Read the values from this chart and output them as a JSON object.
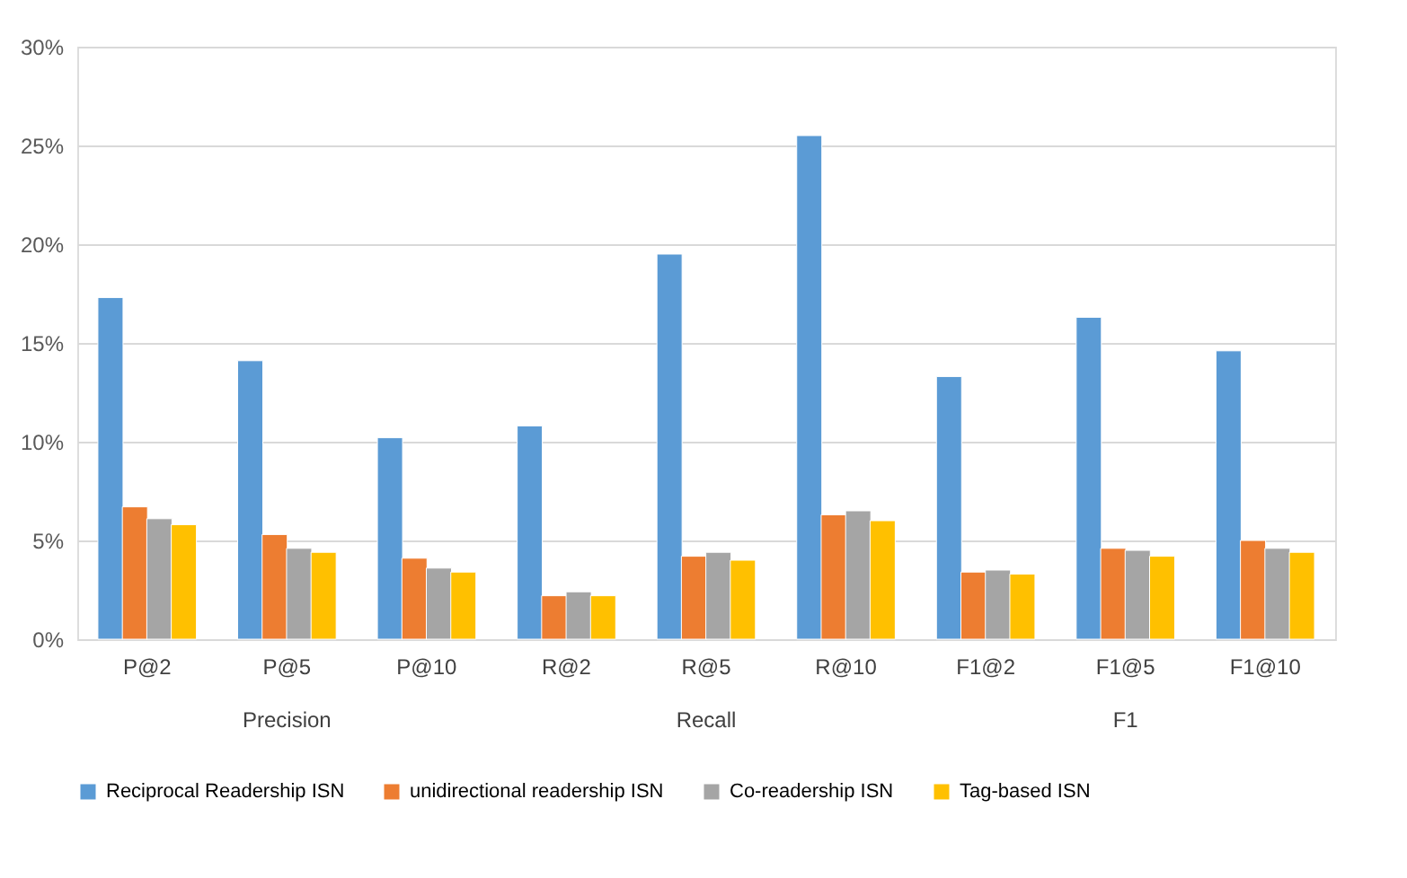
{
  "chart_data": {
    "type": "bar",
    "categories": [
      "P@2",
      "P@5",
      "P@10",
      "R@2",
      "R@5",
      "R@10",
      "F1@2",
      "F1@5",
      "F1@10"
    ],
    "series": [
      {
        "name": "Reciprocal Readership ISN",
        "color": "#5b9bd5",
        "values": [
          17.3,
          14.1,
          10.2,
          10.8,
          19.5,
          25.5,
          13.3,
          16.3,
          14.6
        ]
      },
      {
        "name": "unidirectional readership ISN",
        "color": "#ed7d31",
        "values": [
          6.7,
          5.3,
          4.1,
          2.2,
          4.2,
          6.3,
          3.4,
          4.6,
          5.0
        ]
      },
      {
        "name": "Co-readership ISN",
        "color": "#a5a5a5",
        "values": [
          6.1,
          4.6,
          3.6,
          2.4,
          4.4,
          6.5,
          3.5,
          4.5,
          4.6
        ]
      },
      {
        "name": "Tag-based ISN",
        "color": "#ffc000",
        "values": [
          5.8,
          4.4,
          3.4,
          2.2,
          4.0,
          6.0,
          3.3,
          4.2,
          4.4
        ]
      }
    ],
    "annotations": [
      "Precision",
      "Recall",
      "F1"
    ],
    "ylim": [
      0,
      30
    ],
    "yticks": [
      {
        "value": 0,
        "label": "0%"
      },
      {
        "value": 5,
        "label": "5%"
      },
      {
        "value": 10,
        "label": "10%"
      },
      {
        "value": 15,
        "label": "15%"
      },
      {
        "value": 20,
        "label": "20%"
      },
      {
        "value": 25,
        "label": "25%"
      },
      {
        "value": 30,
        "label": "30%"
      }
    ],
    "grid": "y",
    "legend": "bottom"
  }
}
